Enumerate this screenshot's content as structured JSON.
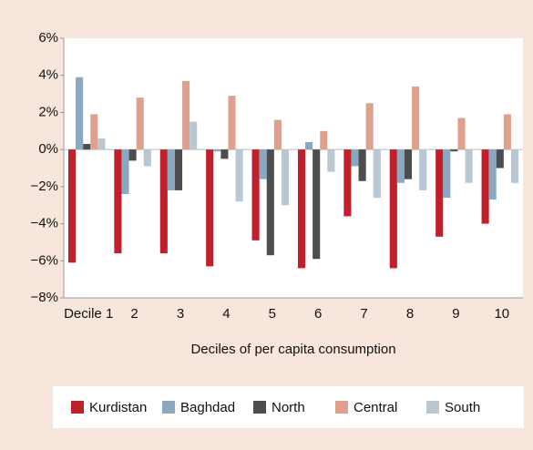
{
  "chart_data": {
    "type": "bar",
    "x_label": "Deciles of per capita consumption",
    "categories": [
      "Decile 1",
      "2",
      "3",
      "4",
      "5",
      "6",
      "7",
      "8",
      "9",
      "10"
    ],
    "series": [
      {
        "name": "Kurdistan",
        "color": "#c0202b",
        "values": [
          -6.1,
          -5.6,
          -5.6,
          -6.3,
          -4.9,
          -6.4,
          -3.6,
          -6.4,
          -4.7,
          -4.0
        ]
      },
      {
        "name": "Baghdad",
        "color": "#8aa9c1",
        "values": [
          3.9,
          -2.4,
          -2.2,
          -0.1,
          -1.6,
          0.4,
          -0.9,
          -1.8,
          -2.6,
          -2.7
        ]
      },
      {
        "name": "North",
        "color": "#4d4d4d",
        "values": [
          0.3,
          -0.6,
          -2.2,
          -0.5,
          -5.7,
          -5.9,
          -1.7,
          -1.6,
          -0.1,
          -1.0
        ]
      },
      {
        "name": "Central",
        "color": "#e0a08e",
        "values": [
          1.9,
          2.8,
          3.7,
          2.9,
          1.6,
          1.0,
          2.5,
          3.4,
          1.7,
          1.9
        ]
      },
      {
        "name": "South",
        "color": "#b9c7d3",
        "values": [
          0.6,
          -0.9,
          1.5,
          -2.8,
          -3.0,
          -1.2,
          -2.6,
          -2.2,
          -1.8,
          -1.8
        ]
      }
    ],
    "ylim": [
      -8,
      6
    ],
    "yticks": [
      {
        "value": -8,
        "label": "−8%"
      },
      {
        "value": -6,
        "label": "−6%"
      },
      {
        "value": -4,
        "label": "−4%"
      },
      {
        "value": -2,
        "label": "−2%"
      },
      {
        "value": 0,
        "label": "0%"
      },
      {
        "value": 2,
        "label": "2%"
      },
      {
        "value": 4,
        "label": "4%"
      },
      {
        "value": 6,
        "label": "6%"
      }
    ]
  }
}
